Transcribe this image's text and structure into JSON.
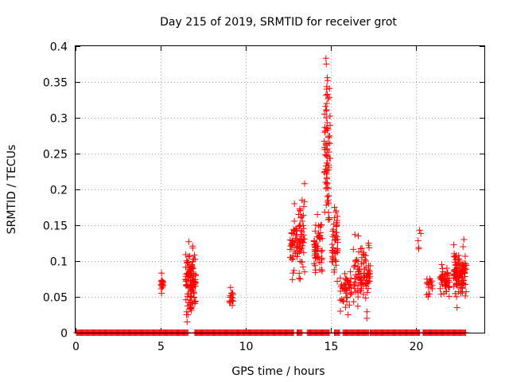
{
  "chart_data": {
    "type": "scatter",
    "title": "Day 215 of 2019, SRMTID for receiver grot",
    "xlabel": "GPS time / hours",
    "ylabel": "SRMTID / TECUs",
    "xlim": [
      0,
      24
    ],
    "ylim": [
      0,
      0.4
    ],
    "x_ticks": [
      0,
      5,
      10,
      15,
      20
    ],
    "x_tick_labels": [
      "0",
      "5",
      "10",
      "15",
      "20"
    ],
    "y_ticks": [
      0,
      0.05,
      0.1,
      0.15,
      0.2,
      0.25,
      0.3,
      0.35,
      0.4
    ],
    "y_tick_labels": [
      "0",
      "0.05",
      "0.1",
      "0.15",
      "0.2",
      "0.25",
      "0.3",
      "0.35",
      "0.4"
    ],
    "grid": true,
    "marker": "+",
    "color": "#ff0000",
    "zero_baseline": {
      "segments": [
        [
          0.05,
          5.0
        ],
        [
          5.0,
          6.6
        ],
        [
          7.0,
          12.8
        ],
        [
          13.0,
          13.3
        ],
        [
          13.6,
          14.9
        ],
        [
          15.2,
          15.5
        ],
        [
          15.7,
          17.2
        ],
        [
          17.3,
          20.2
        ],
        [
          20.4,
          22.9
        ]
      ],
      "step": 0.05
    },
    "clusters": [
      {
        "x": [
          5.0,
          5.15
        ],
        "y": [
          0.05,
          0.085
        ],
        "n": 14
      },
      {
        "x": [
          6.45,
          7.05
        ],
        "y": [
          0.015,
          0.13
        ],
        "n": 110
      },
      {
        "x": [
          9.05,
          9.25
        ],
        "y": [
          0.035,
          0.065
        ],
        "n": 12
      },
      {
        "x": [
          12.6,
          13.05
        ],
        "y": [
          0.06,
          0.18
        ],
        "n": 45
      },
      {
        "x": [
          13.1,
          13.45
        ],
        "y": [
          0.05,
          0.21
        ],
        "n": 45
      },
      {
        "x": [
          14.0,
          14.5
        ],
        "y": [
          0.07,
          0.165
        ],
        "n": 55
      },
      {
        "x": [
          14.6,
          14.95
        ],
        "y": [
          0.12,
          0.38
        ],
        "n": 60
      },
      {
        "x": [
          15.05,
          15.4
        ],
        "y": [
          0.06,
          0.18
        ],
        "n": 50
      },
      {
        "x": [
          15.5,
          16.2
        ],
        "y": [
          0.025,
          0.1
        ],
        "n": 45
      },
      {
        "x": [
          16.3,
          17.3
        ],
        "y": [
          0.02,
          0.14
        ],
        "n": 90
      },
      {
        "x": [
          20.1,
          20.3
        ],
        "y": [
          0.115,
          0.145
        ],
        "n": 3
      },
      {
        "x": [
          20.6,
          20.95
        ],
        "y": [
          0.045,
          0.085
        ],
        "n": 15
      },
      {
        "x": [
          21.4,
          21.95
        ],
        "y": [
          0.04,
          0.1
        ],
        "n": 45
      },
      {
        "x": [
          22.2,
          22.95
        ],
        "y": [
          0.035,
          0.13
        ],
        "n": 110
      }
    ],
    "points": [
      [
        14.7,
        0.383
      ],
      [
        14.72,
        0.375
      ],
      [
        14.78,
        0.356
      ],
      [
        14.8,
        0.352
      ],
      [
        14.74,
        0.34
      ],
      [
        14.68,
        0.316
      ],
      [
        14.75,
        0.32
      ],
      [
        14.72,
        0.3
      ],
      [
        14.82,
        0.285
      ],
      [
        14.7,
        0.262
      ],
      [
        14.78,
        0.246
      ],
      [
        14.85,
        0.228
      ],
      [
        14.68,
        0.21
      ],
      [
        14.78,
        0.19
      ],
      [
        14.82,
        0.185
      ],
      [
        13.45,
        0.208
      ],
      [
        13.3,
        0.185
      ],
      [
        12.85,
        0.18
      ],
      [
        13.4,
        0.176
      ],
      [
        13.1,
        0.165
      ],
      [
        15.2,
        0.175
      ],
      [
        15.28,
        0.168
      ],
      [
        14.2,
        0.165
      ],
      [
        14.1,
        0.15
      ],
      [
        13.2,
        0.15
      ],
      [
        20.2,
        0.143
      ],
      [
        20.15,
        0.117
      ],
      [
        22.8,
        0.13
      ],
      [
        22.75,
        0.12
      ],
      [
        6.65,
        0.127
      ],
      [
        6.88,
        0.118
      ],
      [
        6.7,
        0.107
      ],
      [
        16.4,
        0.137
      ],
      [
        16.6,
        0.135
      ],
      [
        17.2,
        0.125
      ],
      [
        17.05,
        0.1
      ],
      [
        5.05,
        0.083
      ],
      [
        5.1,
        0.07
      ],
      [
        5.05,
        0.055
      ],
      [
        9.1,
        0.063
      ],
      [
        9.15,
        0.055
      ],
      [
        9.05,
        0.043
      ],
      [
        9.2,
        0.038
      ],
      [
        6.55,
        0.015
      ],
      [
        6.6,
        0.025
      ],
      [
        16.0,
        0.025
      ],
      [
        17.1,
        0.02
      ],
      [
        15.55,
        0.03
      ],
      [
        21.5,
        0.095
      ],
      [
        21.8,
        0.09
      ],
      [
        20.8,
        0.075
      ],
      [
        20.7,
        0.05
      ],
      [
        22.4,
        0.035
      ]
    ]
  }
}
